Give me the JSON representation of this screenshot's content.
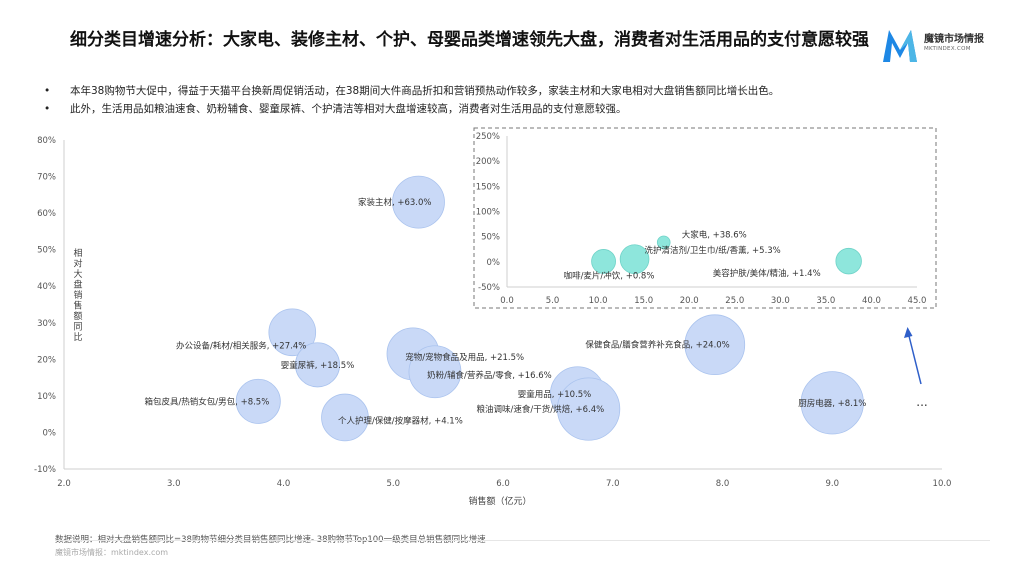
{
  "header": {
    "title": "细分类目增速分析：大家电、装修主材、个护、母婴品类增速领先大盘，消费者对生活用品的支付意愿较强",
    "bullets": [
      "本年38购物节大促中，得益于天猫平台换新周促销活动，在38期间大件商品折扣和营销预热动作较多，家装主材和大家电相对大盘销售额同比增长出色。",
      "此外，生活用品如粮油速食、奶粉辅食、婴童尿裤、个护清洁等相对大盘增速较高，消费者对生活用品的支付意愿较强。"
    ]
  },
  "logo": {
    "name": "魔镜市场情报",
    "domain": "MKTINDEX.COM",
    "colors": [
      "#1e88e5",
      "#4db6e6"
    ]
  },
  "chart_data": [
    {
      "type": "scatter",
      "subtype": "bubble",
      "xlabel": "销售额（亿元）",
      "ylabel": "相对大盘销售额同比",
      "xlim": [
        2.0,
        10.0
      ],
      "ylim": [
        -10,
        80
      ],
      "xticks": [
        "2.0",
        "3.0",
        "4.0",
        "5.0",
        "6.0",
        "7.0",
        "8.0",
        "9.0",
        "10.0"
      ],
      "yticks": [
        "-10%",
        "0%",
        "10%",
        "20%",
        "30%",
        "40%",
        "50%",
        "60%",
        "70%",
        "80%"
      ],
      "bubble_color": "#c9d9f7",
      "points": [
        {
          "label": "家装主材, +63.0%",
          "x": 5.23,
          "y": 63.0,
          "size": 1.0,
          "label_pos": "left"
        },
        {
          "label": "办公设备/耗材/相关服务, +27.4%",
          "x": 4.08,
          "y": 27.4,
          "size": 0.9,
          "label_pos": "right-low"
        },
        {
          "label": "宠物/宠物食品及用品, +21.5%",
          "x": 5.18,
          "y": 21.5,
          "size": 1.0,
          "label_pos": "right"
        },
        {
          "label": "婴童尿裤, +18.5%",
          "x": 4.31,
          "y": 18.5,
          "size": 0.85,
          "label_pos": "center"
        },
        {
          "label": "奶粉/辅食/营养品/零食, +16.6%",
          "x": 5.38,
          "y": 16.6,
          "size": 1.0,
          "label_pos": "right"
        },
        {
          "label": "箱包皮具/热销女包/男包, +8.5%",
          "x": 3.77,
          "y": 8.5,
          "size": 0.85,
          "label_pos": "left"
        },
        {
          "label": "个人护理/保健/按摩器材, +4.1%",
          "x": 4.56,
          "y": 4.1,
          "size": 0.9,
          "label_pos": "right"
        },
        {
          "label": "婴童用品, +10.5%",
          "x": 6.68,
          "y": 10.5,
          "size": 1.05,
          "label_pos": "left"
        },
        {
          "label": "粮油调味/速食/干货/烘焙, +6.4%",
          "x": 6.78,
          "y": 6.4,
          "size": 1.2,
          "label_pos": "left"
        },
        {
          "label": "保健食品/膳食营养补充食品, +24.0%",
          "x": 7.93,
          "y": 24.0,
          "size": 1.15,
          "label_pos": "left"
        },
        {
          "label": "厨房电器, +8.1%",
          "x": 9.0,
          "y": 8.1,
          "size": 1.2,
          "label_pos": "center"
        }
      ],
      "more_indicator": "..."
    },
    {
      "type": "scatter",
      "subtype": "bubble",
      "title": "",
      "xlim": [
        0.0,
        45.0
      ],
      "ylim": [
        -50,
        250
      ],
      "xticks": [
        "0.0",
        "5.0",
        "10.0",
        "15.0",
        "20.0",
        "25.0",
        "30.0",
        "35.0",
        "40.0",
        "45.0"
      ],
      "yticks": [
        "-50%",
        "0%",
        "50%",
        "100%",
        "150%",
        "200%",
        "250%"
      ],
      "bubble_color": "#8ee6dc",
      "points": [
        {
          "label": "大家电, +38.6%",
          "x": 17.2,
          "y": 38.6,
          "size": 0.4
        },
        {
          "label": "洗护清洁剂/卫生巾/纸/香薰, +5.3%",
          "x": 14.0,
          "y": 5.3,
          "size": 0.9
        },
        {
          "label": "咖啡/麦片/冲饮, +0.8%",
          "x": 10.6,
          "y": 0.8,
          "size": 0.75
        },
        {
          "label": "美容护肤/美体/精油, +1.4%",
          "x": 37.5,
          "y": 1.4,
          "size": 0.8
        }
      ]
    }
  ],
  "footer": {
    "note": "数据说明：相对大盘销售额同比=38购物节细分类目销售额同比增速- 38购物节Top100一级类目总销售额同比增速",
    "brand": "魔镜市场情报：mktindex.com"
  }
}
